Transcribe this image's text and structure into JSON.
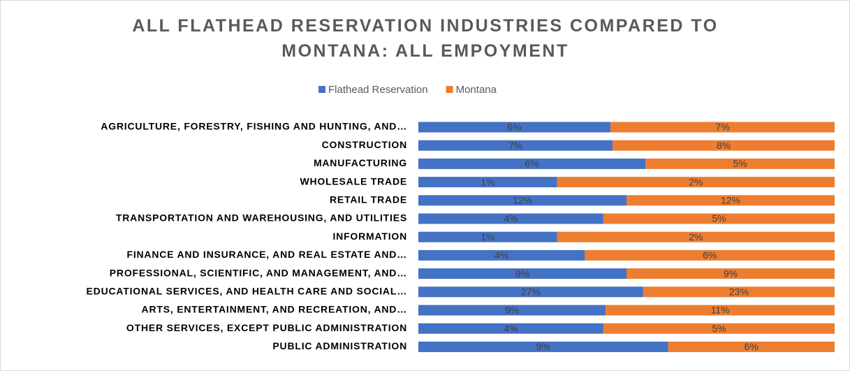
{
  "chart_data": {
    "type": "bar",
    "orientation": "horizontal",
    "stacked": "percent",
    "title": "ALL FLATHEAD RESERVATION INDUSTRIES COMPARED TO MONTANA: ALL EMPOYMENT",
    "categories": [
      "AGRICULTURE, FORESTRY, FISHING AND HUNTING, AND…",
      "CONSTRUCTION",
      "MANUFACTURING",
      "WHOLESALE TRADE",
      "RETAIL TRADE",
      "TRANSPORTATION AND WAREHOUSING, AND UTILITIES",
      "INFORMATION",
      "FINANCE AND INSURANCE, AND REAL ESTATE AND…",
      "PROFESSIONAL, SCIENTIFIC, AND MANAGEMENT, AND…",
      "EDUCATIONAL SERVICES, AND HEALTH CARE AND SOCIAL…",
      "ARTS, ENTERTAINMENT, AND RECREATION, AND…",
      "OTHER SERVICES, EXCEPT PUBLIC ADMINISTRATION",
      "PUBLIC ADMINISTRATION"
    ],
    "series": [
      {
        "name": "Flathead Reservation",
        "color": "#4472c4",
        "values": [
          6,
          7,
          6,
          1,
          12,
          4,
          1,
          4,
          9,
          27,
          9,
          4,
          9
        ],
        "value_labels": [
          "6%",
          "7%",
          "6%",
          "1%",
          "12%",
          "4%",
          "1%",
          "4%",
          "9%",
          "27%",
          "9%",
          "4%",
          "9%"
        ]
      },
      {
        "name": "Montana",
        "color": "#ed7d31",
        "values": [
          7,
          8,
          5,
          2,
          12,
          5,
          2,
          6,
          9,
          23,
          11,
          5,
          6
        ],
        "value_labels": [
          "7%",
          "8%",
          "5%",
          "2%",
          "12%",
          "5%",
          "2%",
          "6%",
          "9%",
          "23%",
          "11%",
          "5%",
          "6%"
        ]
      }
    ],
    "legend": "top"
  }
}
